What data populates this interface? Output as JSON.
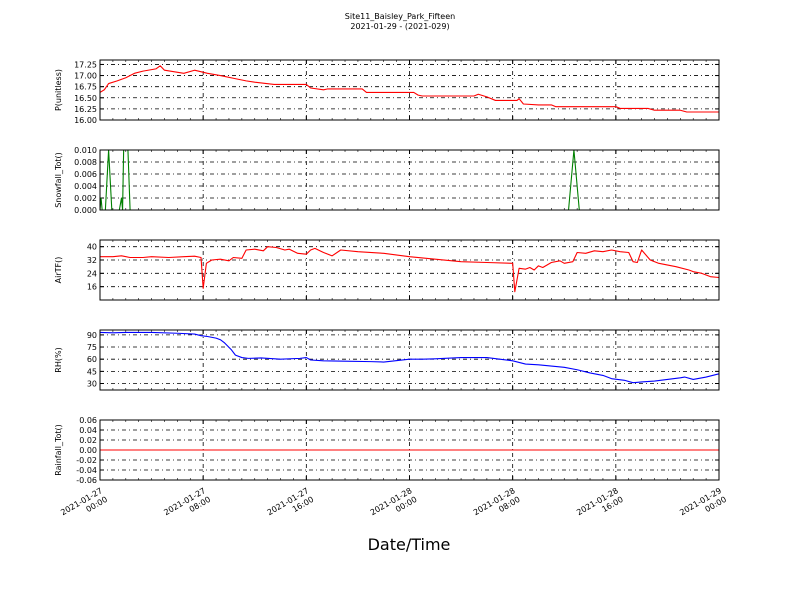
{
  "figure": {
    "title_line1": "Site11_Baisley_Park_Fifteen",
    "title_line2": "2021-01-29 - (2021-029)",
    "xlabel": "Date/Time"
  },
  "chart_data": {
    "type": "line",
    "x_range": [
      "2021-01-27 00:00",
      "2021-01-29 00:00"
    ],
    "x_ticks": [
      {
        "line1": "2021-01-27",
        "line2": "00:00",
        "value": "2021-01-27 00:00"
      },
      {
        "line1": "2021-01-27",
        "line2": "08:00",
        "value": "2021-01-27 08:00"
      },
      {
        "line1": "2021-01-27",
        "line2": "16:00",
        "value": "2021-01-27 16:00"
      },
      {
        "line1": "2021-01-28",
        "line2": "00:00",
        "value": "2021-01-28 00:00"
      },
      {
        "line1": "2021-01-28",
        "line2": "08:00",
        "value": "2021-01-28 08:00"
      },
      {
        "line1": "2021-01-28",
        "line2": "16:00",
        "value": "2021-01-28 16:00"
      },
      {
        "line1": "2021-01-29",
        "line2": "00:00",
        "value": "2021-01-29 00:00"
      }
    ],
    "grid": true,
    "panels": [
      {
        "ylabel": "P(unitless)",
        "color": "#ff0000",
        "ylim": [
          16.0,
          17.35
        ],
        "yticks": [
          "16.00",
          "16.25",
          "16.50",
          "16.75",
          "17.00",
          "17.25"
        ],
        "points": [
          [
            "2021-01-27 00:00",
            16.62
          ],
          [
            "2021-01-27 00:20",
            16.68
          ],
          [
            "2021-01-27 00:40",
            16.82
          ],
          [
            "2021-01-27 01:20",
            16.88
          ],
          [
            "2021-01-27 02:00",
            16.95
          ],
          [
            "2021-01-27 02:40",
            17.05
          ],
          [
            "2021-01-27 03:20",
            17.1
          ],
          [
            "2021-01-27 04:20",
            17.15
          ],
          [
            "2021-01-27 04:40",
            17.22
          ],
          [
            "2021-01-27 05:00",
            17.12
          ],
          [
            "2021-01-27 06:30",
            17.05
          ],
          [
            "2021-01-27 07:20",
            17.12
          ],
          [
            "2021-01-27 08:20",
            17.05
          ],
          [
            "2021-01-27 09:20",
            17.0
          ],
          [
            "2021-01-27 10:40",
            16.92
          ],
          [
            "2021-01-27 11:20",
            16.88
          ],
          [
            "2021-01-27 12:00",
            16.85
          ],
          [
            "2021-01-27 13:30",
            16.8
          ],
          [
            "2021-01-27 16:00",
            16.8
          ],
          [
            "2021-01-27 16:20",
            16.72
          ],
          [
            "2021-01-27 17:20",
            16.68
          ],
          [
            "2021-01-27 17:40",
            16.7
          ],
          [
            "2021-01-27 20:20",
            16.7
          ],
          [
            "2021-01-27 20:40",
            16.62
          ],
          [
            "2021-01-28 00:20",
            16.62
          ],
          [
            "2021-01-28 00:40",
            16.56
          ],
          [
            "2021-01-28 01:00",
            16.54
          ],
          [
            "2021-01-28 05:00",
            16.54
          ],
          [
            "2021-01-28 05:20",
            16.58
          ],
          [
            "2021-01-28 06:00",
            16.52
          ],
          [
            "2021-01-28 06:40",
            16.44
          ],
          [
            "2021-01-28 08:20",
            16.44
          ],
          [
            "2021-01-28 08:30",
            16.48
          ],
          [
            "2021-01-28 08:50",
            16.36
          ],
          [
            "2021-01-28 10:00",
            16.34
          ],
          [
            "2021-01-28 11:00",
            16.34
          ],
          [
            "2021-01-28 11:20",
            16.3
          ],
          [
            "2021-01-28 16:00",
            16.3
          ],
          [
            "2021-01-28 16:20",
            16.26
          ],
          [
            "2021-01-28 18:30",
            16.26
          ],
          [
            "2021-01-28 19:00",
            16.22
          ],
          [
            "2021-01-28 21:00",
            16.22
          ],
          [
            "2021-01-28 21:30",
            16.18
          ],
          [
            "2021-01-29 00:00",
            16.18
          ]
        ]
      },
      {
        "ylabel": "Snowfall_Tot()",
        "color": "#008000",
        "ylim": [
          0.0,
          0.01
        ],
        "yticks": [
          "0.000",
          "0.002",
          "0.004",
          "0.006",
          "0.008",
          "0.010"
        ],
        "points": [
          [
            "2021-01-27 00:00",
            0.0
          ],
          [
            "2021-01-27 00:05",
            0.002
          ],
          [
            "2021-01-27 00:10",
            0.0
          ],
          [
            "2021-01-27 00:25",
            0.0
          ],
          [
            "2021-01-27 00:40",
            0.01
          ],
          [
            "2021-01-27 00:55",
            0.0
          ],
          [
            "2021-01-27 01:30",
            0.0
          ],
          [
            "2021-01-27 01:40",
            0.002
          ],
          [
            "2021-01-27 01:45",
            0.0
          ],
          [
            "2021-01-27 01:50",
            0.01
          ],
          [
            "2021-01-27 02:10",
            0.01
          ],
          [
            "2021-01-27 02:20",
            0.0
          ],
          [
            "2021-01-28 12:20",
            0.0
          ],
          [
            "2021-01-28 12:45",
            0.01
          ],
          [
            "2021-01-28 13:10",
            0.0
          ],
          [
            "2021-01-29 00:00",
            0.0
          ]
        ]
      },
      {
        "ylabel": "AirTF()",
        "color": "#ff0000",
        "ylim": [
          8,
          44
        ],
        "yticks": [
          "16",
          "24",
          "32",
          "40"
        ],
        "points": [
          [
            "2021-01-27 00:00",
            34
          ],
          [
            "2021-01-27 01:00",
            34
          ],
          [
            "2021-01-27 01:40",
            34.5
          ],
          [
            "2021-01-27 02:20",
            33.5
          ],
          [
            "2021-01-27 03:20",
            33.5
          ],
          [
            "2021-01-27 04:00",
            34
          ],
          [
            "2021-01-27 05:20",
            33.5
          ],
          [
            "2021-01-27 06:30",
            34
          ],
          [
            "2021-01-27 07:20",
            34.3
          ],
          [
            "2021-01-27 07:50",
            33.5
          ],
          [
            "2021-01-27 08:00",
            15
          ],
          [
            "2021-01-27 08:15",
            30
          ],
          [
            "2021-01-27 08:40",
            32
          ],
          [
            "2021-01-27 09:20",
            32.5
          ],
          [
            "2021-01-27 10:00",
            31.5
          ],
          [
            "2021-01-27 10:20",
            33.5
          ],
          [
            "2021-01-27 11:00",
            33
          ],
          [
            "2021-01-27 11:20",
            38
          ],
          [
            "2021-01-27 12:00",
            38.5
          ],
          [
            "2021-01-27 12:40",
            37.5
          ],
          [
            "2021-01-27 13:00",
            40
          ],
          [
            "2021-01-27 13:40",
            39.5
          ],
          [
            "2021-01-27 14:20",
            38
          ],
          [
            "2021-01-27 14:40",
            38.5
          ],
          [
            "2021-01-27 15:20",
            36
          ],
          [
            "2021-01-27 16:00",
            35.5
          ],
          [
            "2021-01-27 16:20",
            38
          ],
          [
            "2021-01-27 16:40",
            39
          ],
          [
            "2021-01-27 17:20",
            36.5
          ],
          [
            "2021-01-27 18:00",
            34.5
          ],
          [
            "2021-01-27 18:40",
            38
          ],
          [
            "2021-01-27 20:00",
            37
          ],
          [
            "2021-01-27 22:00",
            36
          ],
          [
            "2021-01-28 00:00",
            34
          ],
          [
            "2021-01-28 02:00",
            32.5
          ],
          [
            "2021-01-28 04:00",
            31
          ],
          [
            "2021-01-28 06:00",
            30.5
          ],
          [
            "2021-01-28 08:00",
            30
          ],
          [
            "2021-01-28 08:10",
            13
          ],
          [
            "2021-01-28 08:30",
            27
          ],
          [
            "2021-01-28 09:00",
            26.5
          ],
          [
            "2021-01-28 09:20",
            27.5
          ],
          [
            "2021-01-28 09:40",
            26
          ],
          [
            "2021-01-28 10:00",
            28.5
          ],
          [
            "2021-01-28 10:20",
            27.5
          ],
          [
            "2021-01-28 11:00",
            30.5
          ],
          [
            "2021-01-28 11:40",
            31.5
          ],
          [
            "2021-01-28 12:00",
            30
          ],
          [
            "2021-01-28 12:40",
            31
          ],
          [
            "2021-01-28 13:00",
            36.5
          ],
          [
            "2021-01-28 13:40",
            36
          ],
          [
            "2021-01-28 14:20",
            37.5
          ],
          [
            "2021-01-28 15:00",
            37
          ],
          [
            "2021-01-28 15:40",
            38
          ],
          [
            "2021-01-28 16:20",
            37
          ],
          [
            "2021-01-28 17:00",
            36.5
          ],
          [
            "2021-01-28 17:20",
            31
          ],
          [
            "2021-01-28 17:40",
            30.5
          ],
          [
            "2021-01-28 18:00",
            38
          ],
          [
            "2021-01-28 18:40",
            32
          ],
          [
            "2021-01-28 19:20",
            30
          ],
          [
            "2021-01-28 20:40",
            28
          ],
          [
            "2021-01-28 21:40",
            26
          ],
          [
            "2021-01-28 22:00",
            25
          ],
          [
            "2021-01-28 22:40",
            24
          ],
          [
            "2021-01-28 23:20",
            22
          ],
          [
            "2021-01-29 00:00",
            21.5
          ]
        ]
      },
      {
        "ylabel": "RH(%)",
        "color": "#0000ff",
        "ylim": [
          22,
          96
        ],
        "yticks": [
          "30",
          "45",
          "60",
          "75",
          "90"
        ],
        "points": [
          [
            "2021-01-27 00:00",
            93
          ],
          [
            "2021-01-27 01:00",
            92.5
          ],
          [
            "2021-01-27 02:00",
            93
          ],
          [
            "2021-01-27 04:00",
            93
          ],
          [
            "2021-01-27 06:00",
            92
          ],
          [
            "2021-01-27 07:20",
            91
          ],
          [
            "2021-01-27 07:50",
            89
          ],
          [
            "2021-01-27 08:20",
            88
          ],
          [
            "2021-01-27 09:00",
            86
          ],
          [
            "2021-01-27 09:20",
            84
          ],
          [
            "2021-01-27 09:40",
            80
          ],
          [
            "2021-01-27 10:10",
            72
          ],
          [
            "2021-01-27 10:30",
            65
          ],
          [
            "2021-01-27 11:00",
            62
          ],
          [
            "2021-01-27 11:30",
            61
          ],
          [
            "2021-01-27 12:30",
            61.5
          ],
          [
            "2021-01-27 14:00",
            60
          ],
          [
            "2021-01-27 15:30",
            61
          ],
          [
            "2021-01-27 16:00",
            62
          ],
          [
            "2021-01-27 16:20",
            59
          ],
          [
            "2021-01-27 17:20",
            58
          ],
          [
            "2021-01-27 19:00",
            57.5
          ],
          [
            "2021-01-27 21:00",
            57
          ],
          [
            "2021-01-27 22:00",
            56.5
          ],
          [
            "2021-01-28 00:00",
            60
          ],
          [
            "2021-01-28 01:00",
            60
          ],
          [
            "2021-01-28 02:00",
            60.5
          ],
          [
            "2021-01-28 04:00",
            62
          ],
          [
            "2021-01-28 06:00",
            62
          ],
          [
            "2021-01-28 07:00",
            60
          ],
          [
            "2021-01-28 08:00",
            58
          ],
          [
            "2021-01-28 09:00",
            54
          ],
          [
            "2021-01-28 10:00",
            53
          ],
          [
            "2021-01-28 12:00",
            50
          ],
          [
            "2021-01-28 13:00",
            47
          ],
          [
            "2021-01-28 14:00",
            43
          ],
          [
            "2021-01-28 15:00",
            40
          ],
          [
            "2021-01-28 15:40",
            36
          ],
          [
            "2021-01-28 16:40",
            34
          ],
          [
            "2021-01-28 17:20",
            31
          ],
          [
            "2021-01-28 18:00",
            32
          ],
          [
            "2021-01-28 19:00",
            33
          ],
          [
            "2021-01-28 20:00",
            35
          ],
          [
            "2021-01-28 21:00",
            37
          ],
          [
            "2021-01-28 21:20",
            38
          ],
          [
            "2021-01-28 22:00",
            35
          ],
          [
            "2021-01-28 23:00",
            38
          ],
          [
            "2021-01-29 00:00",
            42
          ]
        ]
      },
      {
        "ylabel": "Rainfall_Tot()",
        "color": "#ff0000",
        "ylim": [
          -0.06,
          0.06
        ],
        "yticks": [
          "-0.06",
          "-0.04",
          "-0.02",
          "0.00",
          "0.02",
          "0.04",
          "0.06"
        ],
        "points": [
          [
            "2021-01-27 00:00",
            0.0
          ],
          [
            "2021-01-29 00:00",
            0.0
          ]
        ]
      }
    ]
  }
}
